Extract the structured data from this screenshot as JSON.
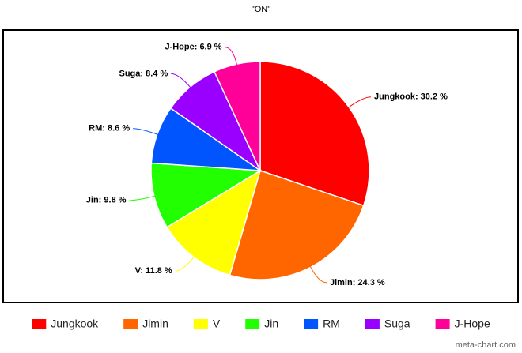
{
  "chart_data": {
    "type": "pie",
    "title": "\"ON\"",
    "categories": [
      "Jungkook",
      "Jimin",
      "V",
      "Jin",
      "RM",
      "Suga",
      "J-Hope"
    ],
    "values": [
      30.2,
      24.3,
      11.8,
      9.8,
      8.6,
      8.4,
      6.9
    ],
    "value_labels": [
      "Jungkook: 30.2 %",
      "Jimin: 24.3 %",
      "V: 11.8 %",
      "Jin: 9.8 %",
      "RM: 8.6 %",
      "Suga: 8.4 %",
      "J-Hope: 6.9 %"
    ],
    "colors": [
      "#ff0000",
      "#ff6600",
      "#ffff00",
      "#22ff00",
      "#0055ff",
      "#9900ff",
      "#ff0099"
    ],
    "legend": "bottom",
    "source": "meta-chart.com"
  }
}
